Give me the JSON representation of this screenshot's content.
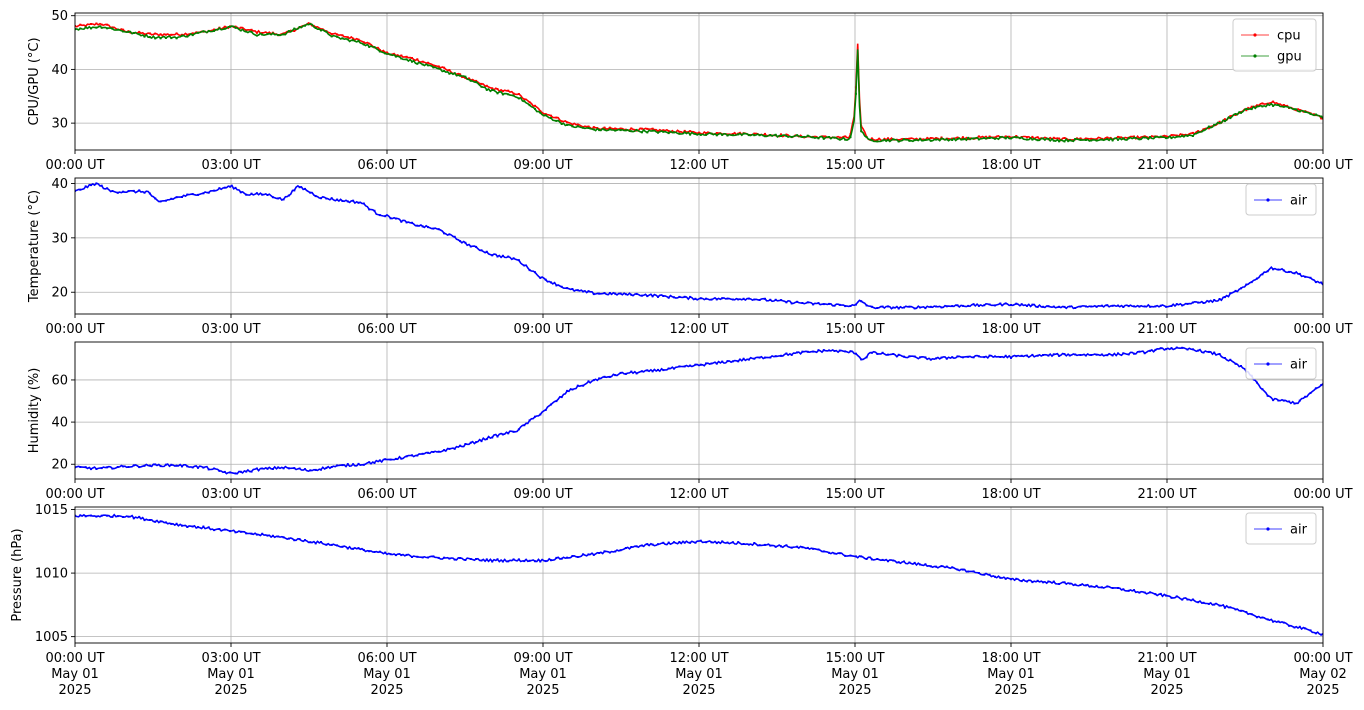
{
  "chart_data": [
    {
      "type": "line",
      "ylabel": "CPU/GPU (°C)",
      "xlim": [
        "2025-05-01T00:00Z",
        "2025-05-02T00:00Z"
      ],
      "ylim": [
        25,
        50.5
      ],
      "yticks": [
        30,
        40,
        50
      ],
      "x_tick_labels": [
        "00:00 UT",
        "03:00 UT",
        "06:00 UT",
        "09:00 UT",
        "12:00 UT",
        "15:00 UT",
        "18:00 UT",
        "21:00 UT",
        "00:00 UT"
      ],
      "grid": true,
      "legend": "top-right",
      "x": [
        0,
        0.5,
        1.0,
        1.5,
        2.0,
        2.5,
        3.0,
        3.5,
        4.0,
        4.5,
        5.0,
        5.5,
        6.0,
        6.5,
        7.0,
        7.5,
        8.0,
        8.5,
        9.0,
        9.5,
        10.0,
        11.0,
        12.0,
        13.0,
        14.0,
        14.9,
        15.0,
        15.05,
        15.1,
        15.25,
        16.0,
        17.0,
        18.0,
        19.0,
        20.0,
        21.0,
        21.5,
        22.0,
        22.5,
        23.0,
        23.5,
        24.0
      ],
      "series": [
        {
          "name": "cpu",
          "color": "#ff0000",
          "values": [
            48.0,
            48.5,
            47.0,
            46.5,
            46.5,
            47.0,
            48.0,
            47.0,
            46.5,
            48.5,
            46.5,
            45.5,
            43.0,
            42.0,
            40.5,
            38.5,
            36.5,
            35.5,
            32.0,
            30.0,
            29.0,
            28.8,
            28.2,
            28.0,
            27.5,
            27.3,
            32.0,
            45.0,
            30.0,
            27.0,
            27.0,
            27.2,
            27.5,
            27.0,
            27.2,
            27.5,
            28.0,
            30.0,
            32.5,
            34.0,
            32.5,
            31.0
          ]
        },
        {
          "name": "gpu",
          "color": "#008000",
          "values": [
            47.5,
            48.0,
            47.0,
            46.0,
            46.0,
            47.0,
            48.0,
            46.5,
            46.5,
            48.5,
            46.0,
            45.0,
            43.0,
            41.5,
            40.0,
            38.5,
            36.0,
            35.0,
            31.5,
            29.5,
            28.8,
            28.5,
            28.0,
            27.8,
            27.5,
            27.0,
            31.0,
            44.0,
            29.0,
            26.8,
            26.8,
            27.0,
            27.3,
            26.8,
            27.0,
            27.3,
            27.8,
            30.0,
            32.5,
            33.5,
            32.5,
            31.0
          ]
        }
      ]
    },
    {
      "type": "line",
      "ylabel": "Temperature (°C)",
      "xlim": [
        "2025-05-01T00:00Z",
        "2025-05-02T00:00Z"
      ],
      "ylim": [
        16,
        41
      ],
      "yticks": [
        20,
        30,
        40
      ],
      "x_tick_labels": [
        "00:00 UT",
        "03:00 UT",
        "06:00 UT",
        "09:00 UT",
        "12:00 UT",
        "15:00 UT",
        "18:00 UT",
        "21:00 UT",
        "00:00 UT"
      ],
      "grid": true,
      "legend": "top-right",
      "x": [
        0,
        0.4,
        0.7,
        1.0,
        1.4,
        1.6,
        1.8,
        2.0,
        2.3,
        2.6,
        3.0,
        3.3,
        3.7,
        4.0,
        4.3,
        4.7,
        5.0,
        5.5,
        5.8,
        6.0,
        6.5,
        7.0,
        7.5,
        8.0,
        8.5,
        9.0,
        9.5,
        10.0,
        11.0,
        12.0,
        13.0,
        14.0,
        15.0,
        15.1,
        15.3,
        16.0,
        17.0,
        18.0,
        19.0,
        20.0,
        21.0,
        22.0,
        22.5,
        23.0,
        23.5,
        24.0
      ],
      "series": [
        {
          "name": "air",
          "color": "#0000ff",
          "values": [
            38.5,
            40.0,
            38.5,
            38.5,
            38.5,
            36.5,
            37.0,
            37.5,
            38.0,
            38.5,
            39.5,
            38.0,
            38.0,
            37.0,
            39.5,
            37.5,
            37.0,
            36.5,
            34.5,
            34.0,
            32.5,
            31.5,
            29.0,
            27.0,
            26.0,
            22.5,
            20.5,
            19.8,
            19.5,
            18.8,
            18.8,
            18.0,
            17.5,
            18.5,
            17.2,
            17.2,
            17.5,
            17.8,
            17.2,
            17.5,
            17.5,
            18.5,
            21.0,
            24.5,
            23.5,
            21.5
          ]
        }
      ]
    },
    {
      "type": "line",
      "ylabel": "Humidity (%)",
      "xlim": [
        "2025-05-01T00:00Z",
        "2025-05-02T00:00Z"
      ],
      "ylim": [
        13,
        78
      ],
      "yticks": [
        20,
        40,
        60
      ],
      "x_tick_labels": [
        "00:00 UT",
        "03:00 UT",
        "06:00 UT",
        "09:00 UT",
        "12:00 UT",
        "15:00 UT",
        "18:00 UT",
        "21:00 UT",
        "00:00 UT"
      ],
      "grid": true,
      "legend": "top-right",
      "x": [
        0,
        0.5,
        1.0,
        1.5,
        2.0,
        2.5,
        3.0,
        3.5,
        4.0,
        4.5,
        5.0,
        5.5,
        6.0,
        6.5,
        7.0,
        7.5,
        8.0,
        8.5,
        9.0,
        9.5,
        10.0,
        10.5,
        11.0,
        12.0,
        13.0,
        14.0,
        14.5,
        15.0,
        15.15,
        15.3,
        16.0,
        16.5,
        17.0,
        18.0,
        19.0,
        20.0,
        20.5,
        21.0,
        21.5,
        22.0,
        22.5,
        23.0,
        23.5,
        24.0
      ],
      "series": [
        {
          "name": "air",
          "color": "#0000ff",
          "values": [
            18.5,
            18.0,
            19.0,
            19.5,
            19.5,
            18.5,
            15.5,
            17.5,
            18.5,
            17.0,
            19.0,
            20.0,
            22.0,
            24.0,
            26.0,
            29.0,
            33.0,
            36.0,
            45.0,
            55.0,
            60.0,
            63.0,
            64.0,
            67.0,
            70.0,
            73.0,
            74.0,
            73.0,
            69.5,
            73.0,
            71.0,
            70.0,
            71.0,
            71.0,
            72.0,
            72.0,
            73.0,
            75.0,
            74.5,
            72.0,
            65.0,
            51.0,
            49.0,
            58.0
          ]
        }
      ]
    },
    {
      "type": "line",
      "ylabel": "Pressure (hPa)",
      "xlim": [
        "2025-05-01T00:00Z",
        "2025-05-02T00:00Z"
      ],
      "ylim": [
        1004.5,
        1015.2
      ],
      "yticks": [
        1005,
        1010,
        1015
      ],
      "x_tick_labels": [
        "00:00 UT\nMay 01\n2025",
        "03:00 UT\nMay 01\n2025",
        "06:00 UT\nMay 01\n2025",
        "09:00 UT\nMay 01\n2025",
        "12:00 UT\nMay 01\n2025",
        "15:00 UT\nMay 01\n2025",
        "18:00 UT\nMay 01\n2025",
        "21:00 UT\nMay 01\n2025",
        "00:00 UT\nMay 02\n2025"
      ],
      "grid": true,
      "legend": "top-right",
      "x": [
        0,
        1.0,
        2.0,
        3.0,
        4.0,
        5.0,
        6.0,
        7.0,
        8.0,
        9.0,
        10.0,
        11.0,
        12.0,
        13.0,
        14.0,
        15.0,
        16.0,
        17.0,
        18.0,
        19.0,
        20.0,
        21.0,
        22.0,
        23.0,
        24.0
      ],
      "series": [
        {
          "name": "air",
          "color": "#0000ff",
          "values": [
            1014.5,
            1014.5,
            1013.8,
            1013.3,
            1012.8,
            1012.2,
            1011.5,
            1011.2,
            1011.0,
            1011.0,
            1011.5,
            1012.2,
            1012.5,
            1012.3,
            1012.0,
            1011.3,
            1010.8,
            1010.3,
            1009.5,
            1009.2,
            1008.8,
            1008.2,
            1007.5,
            1006.3,
            1005.2
          ]
        }
      ]
    }
  ]
}
